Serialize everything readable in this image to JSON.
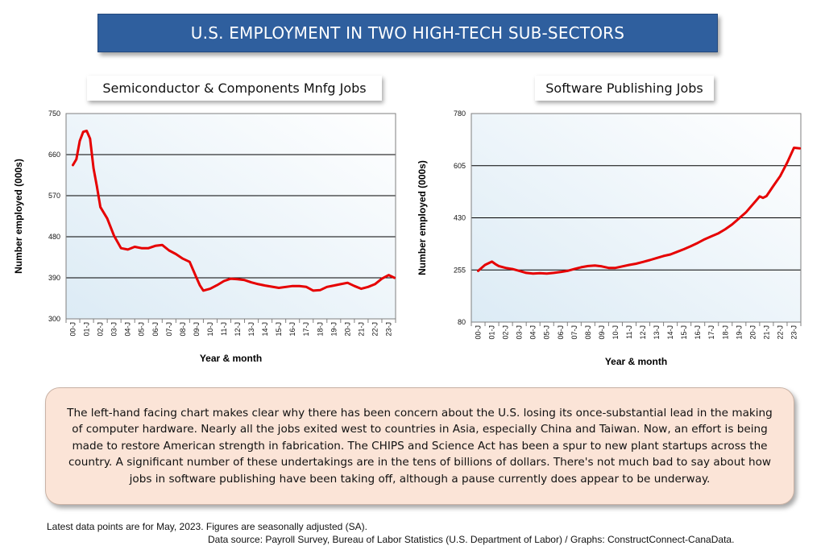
{
  "title": "U.S. EMPLOYMENT IN TWO HIGH-TECH SUB-SECTORS",
  "chart_data": [
    {
      "type": "line",
      "title": "Semiconductor & Components Mnfg Jobs",
      "xlabel": "Year & month",
      "ylabel": "Number employed (000s)",
      "ylim": [
        300,
        750
      ],
      "yticks": [
        "750",
        "660",
        "570",
        "480",
        "390",
        "300"
      ],
      "xticks": [
        "00-J",
        "01-J",
        "02-J",
        "03-J",
        "04-J",
        "05-J",
        "06-J",
        "07-J",
        "08-J",
        "09-J",
        "10-J",
        "11-J",
        "12-J",
        "13-J",
        "14-J",
        "15-J",
        "16-J",
        "17-J",
        "18-J",
        "19-J",
        "20-J",
        "21-J",
        "22-J",
        "23-J"
      ],
      "grid": true,
      "color": "#e60000",
      "series": [
        {
          "name": "Semiconductor & Components Mnfg",
          "x": [
            0,
            0.25,
            0.5,
            0.75,
            1.0,
            1.25,
            1.5,
            1.75,
            2.0,
            2.5,
            3.0,
            3.5,
            4.0,
            4.5,
            5.0,
            5.5,
            6.0,
            6.5,
            7.0,
            7.5,
            8.0,
            8.5,
            9.0,
            9.25,
            9.5,
            10.0,
            10.5,
            11.0,
            11.5,
            12.0,
            12.5,
            13.0,
            13.5,
            14.0,
            15.0,
            16.0,
            16.5,
            17.0,
            17.5,
            18.0,
            18.5,
            19.0,
            19.5,
            20.0,
            20.5,
            21.0,
            21.5,
            22.0,
            22.5,
            23.0,
            23.42
          ],
          "values": [
            637,
            650,
            690,
            710,
            712,
            695,
            630,
            590,
            545,
            520,
            482,
            455,
            452,
            458,
            455,
            455,
            460,
            462,
            450,
            442,
            432,
            425,
            390,
            373,
            362,
            366,
            374,
            383,
            388,
            387,
            385,
            380,
            376,
            373,
            368,
            372,
            372,
            370,
            362,
            363,
            370,
            373,
            376,
            379,
            372,
            366,
            370,
            376,
            388,
            396,
            390
          ]
        }
      ]
    },
    {
      "type": "line",
      "title": "Software Publishing Jobs",
      "xlabel": "Year & month",
      "ylabel": "Number employed (000s)",
      "ylim": [
        80,
        780
      ],
      "yticks": [
        "780",
        "605",
        "430",
        "255",
        "80"
      ],
      "xticks": [
        "00-J",
        "01-J",
        "02-J",
        "03-J",
        "04-J",
        "05-J",
        "06-J",
        "07-J",
        "08-J",
        "09-J",
        "10-J",
        "11-J",
        "12-J",
        "13-J",
        "14-J",
        "15-J",
        "16-J",
        "17-J",
        "18-J",
        "19-J",
        "20-J",
        "21-J",
        "22-J",
        "23-J"
      ],
      "grid": true,
      "color": "#e60000",
      "series": [
        {
          "name": "Software Publishing",
          "x": [
            0,
            0.5,
            1.0,
            1.25,
            1.5,
            2.0,
            2.5,
            3.0,
            3.5,
            4.0,
            4.5,
            5.0,
            5.5,
            6.0,
            6.5,
            7.0,
            7.5,
            8.0,
            8.5,
            9.0,
            9.5,
            10.0,
            10.5,
            11.0,
            11.5,
            12.0,
            12.5,
            13.0,
            13.5,
            14.0,
            14.5,
            15.0,
            15.5,
            16.0,
            16.5,
            17.0,
            17.5,
            18.0,
            18.5,
            19.0,
            19.5,
            20.0,
            20.25,
            20.5,
            20.75,
            21.0,
            21.5,
            22.0,
            22.5,
            23.0,
            23.42
          ],
          "values": [
            252,
            272,
            283,
            275,
            268,
            262,
            258,
            252,
            245,
            243,
            244,
            243,
            245,
            248,
            252,
            258,
            264,
            268,
            270,
            267,
            262,
            262,
            267,
            272,
            276,
            282,
            288,
            295,
            302,
            307,
            316,
            325,
            335,
            346,
            358,
            368,
            378,
            392,
            408,
            428,
            448,
            475,
            488,
            502,
            497,
            503,
            537,
            570,
            615,
            665,
            663
          ]
        }
      ]
    }
  ],
  "commentary": "The left-hand facing chart makes clear why there has been concern about the U.S. losing its once-substantial lead in the making of computer hardware. Nearly all the jobs exited west to countries in Asia, especially China and Taiwan. Now, an effort is being made to restore American strength in fabrication. The CHIPS and Science Act has been a spur to new plant startups across the country. A significant number of these undertakings are in the tens of billions of dollars. There's not much bad to say about how jobs in software publishing have been taking off, although a pause currently does appear to be underway.",
  "footnote": "Latest data points are for May, 2023. Figures are seasonally adjusted (SA).",
  "source": "Data source: Payroll Survey, Bureau of Labor Statistics (U.S. Department of Labor) / Graphs: ConstructConnect-CanaData."
}
